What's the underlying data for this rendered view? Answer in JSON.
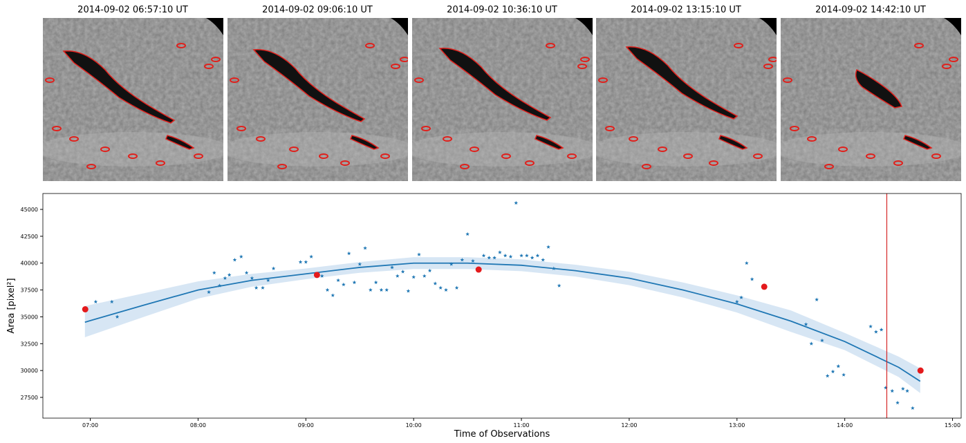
{
  "panels": [
    {
      "title": "2014-09-02 06:57:10 UT"
    },
    {
      "title": "2014-09-02 09:06:10 UT"
    },
    {
      "title": "2014-09-02 10:36:10 UT"
    },
    {
      "title": "2014-09-02 13:15:10 UT"
    },
    {
      "title": "2014-09-02 14:42:10 UT"
    }
  ],
  "chart_data": {
    "type": "scatter",
    "xlabel": "Time of Observations",
    "ylabel": "Area [pixel²]",
    "xlim": [
      6.56,
      15.08
    ],
    "ylim": [
      25570,
      46480
    ],
    "xticks": [
      {
        "value": 7,
        "label": "07:00"
      },
      {
        "value": 8,
        "label": "08:00"
      },
      {
        "value": 9,
        "label": "09:00"
      },
      {
        "value": 10,
        "label": "10:00"
      },
      {
        "value": 11,
        "label": "11:00"
      },
      {
        "value": 12,
        "label": "12:00"
      },
      {
        "value": 13,
        "label": "13:00"
      },
      {
        "value": 14,
        "label": "14:00"
      },
      {
        "value": 15,
        "label": "15:00"
      }
    ],
    "yticks": [
      27500,
      30000,
      32500,
      35000,
      37500,
      40000,
      42500,
      45000
    ],
    "vline": {
      "x": 14.39,
      "color": "#d62728"
    },
    "series": [
      {
        "kind": "band",
        "color": "#c6dbef",
        "x": [
          6.95,
          7.5,
          8,
          8.5,
          9,
          9.5,
          10,
          10.5,
          11,
          11.5,
          12,
          12.5,
          13,
          13.5,
          14,
          14.5,
          14.7
        ],
        "lower": [
          33100,
          35000,
          36700,
          37800,
          38500,
          39100,
          39450,
          39450,
          39250,
          38750,
          37950,
          36800,
          35400,
          33600,
          31900,
          29400,
          27900
        ],
        "upper": [
          36000,
          37200,
          38300,
          39000,
          39500,
          40100,
          40550,
          40550,
          40350,
          39850,
          39200,
          38200,
          37000,
          35600,
          33500,
          31300,
          30200
        ]
      },
      {
        "kind": "line",
        "color": "#1f77b4",
        "x": [
          6.95,
          7.5,
          8,
          8.5,
          9,
          9.5,
          10,
          10.5,
          11,
          11.5,
          12,
          12.5,
          13,
          13.5,
          14,
          14.5,
          14.7
        ],
        "values": [
          34500,
          36100,
          37500,
          38400,
          39000,
          39600,
          40000,
          40000,
          39800,
          39300,
          38600,
          37500,
          36200,
          34600,
          32700,
          30300,
          29000
        ]
      },
      {
        "kind": "star",
        "color": "#1f77b4",
        "x": [
          7.05,
          7.2,
          7.25,
          8.1,
          8.15,
          8.2,
          8.25,
          8.29,
          8.34,
          8.4,
          8.45,
          8.5,
          8.54,
          8.6,
          8.65,
          8.7,
          8.95,
          9.0,
          9.05,
          9.15,
          9.2,
          9.25,
          9.3,
          9.35,
          9.4,
          9.45,
          9.5,
          9.55,
          9.6,
          9.65,
          9.7,
          9.75,
          9.8,
          9.85,
          9.9,
          9.95,
          10.0,
          10.05,
          10.1,
          10.15,
          10.2,
          10.25,
          10.3,
          10.35,
          10.4,
          10.45,
          10.5,
          10.55,
          10.65,
          10.7,
          10.75,
          10.8,
          10.85,
          10.9,
          10.95,
          11.0,
          11.05,
          11.1,
          11.15,
          11.2,
          11.25,
          11.3,
          11.35,
          13.0,
          13.04,
          13.09,
          13.14,
          13.64,
          13.69,
          13.74,
          13.79,
          13.84,
          13.89,
          13.94,
          13.99,
          14.24,
          14.29,
          14.34,
          14.38,
          14.44,
          14.49,
          14.54,
          14.58,
          14.63
        ],
        "values": [
          36400,
          36400,
          35000,
          37300,
          39100,
          37900,
          38600,
          38900,
          40300,
          40600,
          39100,
          38600,
          37700,
          37700,
          38400,
          39500,
          40100,
          40100,
          40600,
          38800,
          37500,
          37000,
          38400,
          38000,
          40900,
          38200,
          39900,
          41400,
          37500,
          38200,
          37500,
          37500,
          39600,
          38800,
          39200,
          37400,
          38700,
          40800,
          38800,
          39300,
          38100,
          37700,
          37500,
          39900,
          37700,
          40300,
          42700,
          40200,
          40700,
          40500,
          40500,
          41000,
          40700,
          40600,
          45600,
          40700,
          40700,
          40500,
          40700,
          40300,
          41500,
          39500,
          37900,
          36400,
          36800,
          40000,
          38500,
          34300,
          32500,
          36600,
          32800,
          29500,
          29900,
          30400,
          29600,
          34100,
          33600,
          33800,
          28400,
          28100,
          27000,
          28300,
          28100,
          26500
        ]
      },
      {
        "kind": "dot",
        "color": "#e41a1c",
        "x": [
          6.953,
          9.103,
          10.603,
          13.253,
          14.703
        ],
        "values": [
          35700,
          38900,
          39400,
          37800,
          30000
        ]
      }
    ]
  }
}
